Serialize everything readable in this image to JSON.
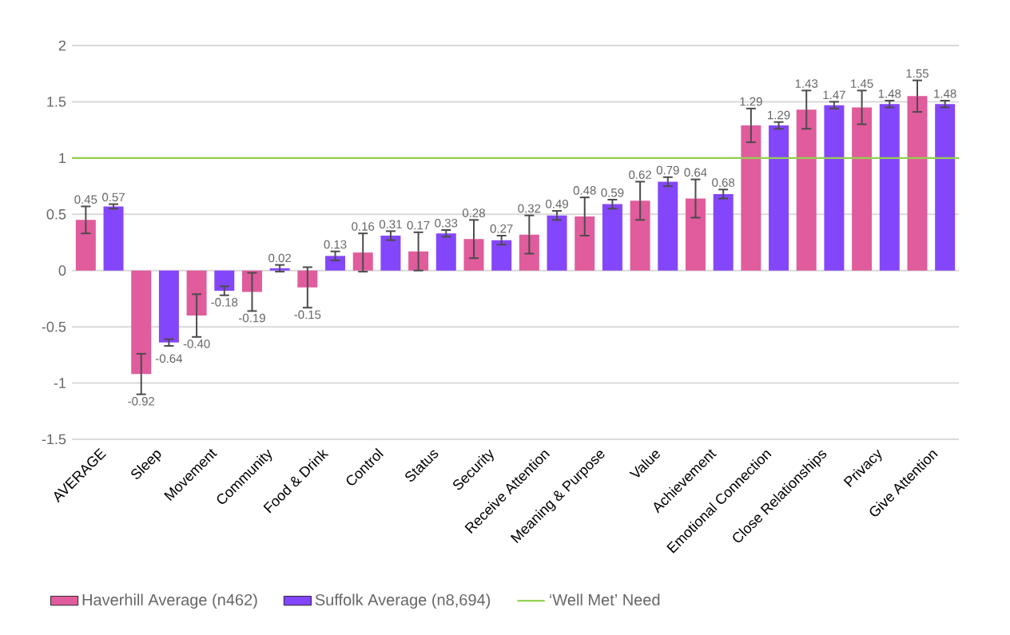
{
  "chart_data": {
    "type": "bar",
    "categories": [
      "AVERAGE",
      "Sleep",
      "Movement",
      "Community",
      "Food & Drink",
      "Control",
      "Status",
      "Security",
      "Receive Attention",
      "Meaning & Purpose",
      "Value",
      "Achievement",
      "Emotional Connection",
      "Close Relationships",
      "Privacy",
      "Give Attention"
    ],
    "series": [
      {
        "name": "Haverhill Average (n462)",
        "color": "#e05c9c",
        "values": [
          0.45,
          -0.92,
          -0.4,
          -0.19,
          -0.15,
          0.16,
          0.17,
          0.28,
          0.32,
          0.48,
          0.62,
          0.64,
          1.29,
          1.43,
          1.45,
          1.55
        ],
        "errors": [
          0.12,
          0.18,
          0.19,
          0.17,
          0.18,
          0.17,
          0.17,
          0.17,
          0.17,
          0.17,
          0.17,
          0.17,
          0.15,
          0.17,
          0.15,
          0.14
        ],
        "value_labels": [
          "0.45",
          "-0.92",
          "-0.40",
          "-0.19",
          "-0.15",
          "0.16",
          "0.17",
          "0.28",
          "0.32",
          "0.48",
          "0.62",
          "0.64",
          "1.29",
          "1.43",
          "1.45",
          "1.55"
        ]
      },
      {
        "name": "Suffolk Average (n8,694)",
        "color": "#8446fb",
        "values": [
          0.57,
          -0.64,
          -0.18,
          0.02,
          0.13,
          0.31,
          0.33,
          0.27,
          0.49,
          0.59,
          0.79,
          0.68,
          1.29,
          1.47,
          1.48,
          1.48
        ],
        "errors": [
          0.02,
          0.03,
          0.04,
          0.03,
          0.04,
          0.04,
          0.03,
          0.04,
          0.04,
          0.04,
          0.04,
          0.04,
          0.03,
          0.03,
          0.03,
          0.03
        ],
        "value_labels": [
          "0.57",
          "-0.64",
          "-0.18",
          "0.02",
          "0.13",
          "0.31",
          "0.33",
          "0.27",
          "0.49",
          "0.59",
          "0.79",
          "0.68",
          "1.29",
          "1.47",
          "1.48",
          "1.48"
        ]
      }
    ],
    "ylim": [
      -1.5,
      2
    ],
    "yticks": [
      -1.5,
      -1,
      -0.5,
      0,
      0.5,
      1,
      1.5,
      2
    ],
    "ref_lines": [
      {
        "axis": "y",
        "value": 1,
        "label": "‘Well Met’ Need",
        "color": "#92d050"
      }
    ],
    "data_labels": true,
    "grid": "y",
    "legend": "bottom"
  }
}
